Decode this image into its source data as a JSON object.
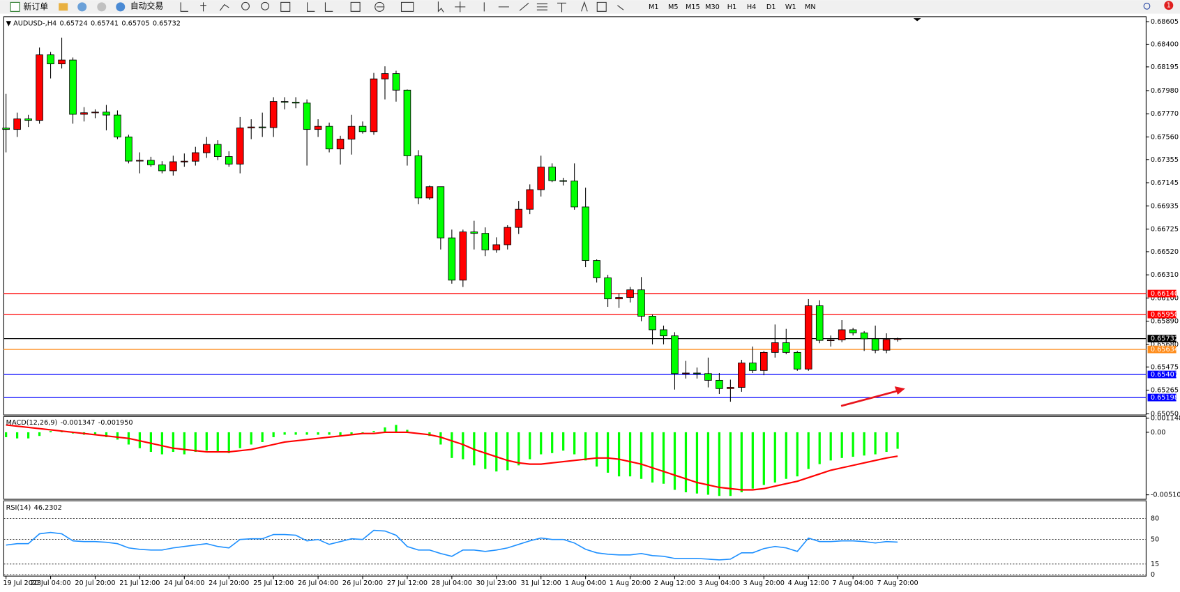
{
  "toolbar": {
    "new_order": "新订单",
    "auto_trading": "自动交易",
    "timeframes": [
      "M1",
      "M5",
      "M15",
      "M30",
      "H1",
      "H4",
      "D1",
      "W1",
      "MN"
    ],
    "badge": "1"
  },
  "chart": {
    "type": "candlestick",
    "symbol": "AUDUSD-,H4",
    "bull_color": "#ff0000",
    "bear_color": "#00ff00",
    "ylim": [
      0.6504,
      0.6865
    ],
    "yticks": [
      0.68605,
      {
        "value": 0.684,
        "label": "0.68400"
      },
      0.68195,
      {
        "value": 0.6798,
        "label": "0.67980"
      },
      {
        "value": 0.6777,
        "label": "0.67770"
      },
      {
        "value": 0.6756,
        "label": "0.67560"
      },
      0.67355,
      0.67145,
      0.66935,
      0.66725,
      {
        "value": 0.6652,
        "label": "0.66520"
      },
      {
        "value": 0.6631,
        "label": "0.66310"
      },
      {
        "value": 0.661,
        "label": "0.66100"
      },
      {
        "value": 0.6589,
        "label": "0.65890"
      },
      {
        "value": 0.6568,
        "label": "0.65680"
      },
      0.65475,
      0.65265,
      {
        "value": 0.6505,
        "label": "0.65050"
      }
    ],
    "candles": [
      [
        0.6764,
        0.6795,
        0.6742,
        0.67628
      ],
      [
        0.67628,
        0.6778,
        0.6756,
        0.67724
      ],
      [
        0.67724,
        0.6776,
        0.6765,
        0.6771
      ],
      [
        0.6771,
        0.6837,
        0.6768,
        0.68304
      ],
      [
        0.68304,
        0.6833,
        0.6809,
        0.68222
      ],
      [
        0.68222,
        0.6846,
        0.6818,
        0.68257
      ],
      [
        0.68257,
        0.6828,
        0.6768,
        0.67765
      ],
      [
        0.67765,
        0.6783,
        0.677,
        0.67779
      ],
      [
        0.67779,
        0.6781,
        0.6773,
        0.67785
      ],
      [
        0.67785,
        0.6785,
        0.6762,
        0.67758
      ],
      [
        0.67758,
        0.678,
        0.6754,
        0.6756
      ],
      [
        0.6756,
        0.6758,
        0.6732,
        0.67341
      ],
      [
        0.67341,
        0.6742,
        0.6723,
        0.67348
      ],
      [
        0.67348,
        0.6738,
        0.6729,
        0.67307
      ],
      [
        0.67307,
        0.6734,
        0.6723,
        0.67253
      ],
      [
        0.67253,
        0.6739,
        0.6721,
        0.67335
      ],
      [
        0.67335,
        0.6741,
        0.6729,
        0.6734
      ],
      [
        0.6734,
        0.6747,
        0.673,
        0.67417
      ],
      [
        0.67417,
        0.6756,
        0.6737,
        0.67492
      ],
      [
        0.67492,
        0.6753,
        0.6735,
        0.67382
      ],
      [
        0.67382,
        0.6743,
        0.6729,
        0.67314
      ],
      [
        0.67314,
        0.6774,
        0.6723,
        0.67642
      ],
      [
        0.67642,
        0.6772,
        0.6754,
        0.6765
      ],
      [
        0.6765,
        0.6778,
        0.6756,
        0.67645
      ],
      [
        0.67645,
        0.6792,
        0.6756,
        0.67881
      ],
      [
        0.67881,
        0.6792,
        0.6781,
        0.67875
      ],
      [
        0.67875,
        0.6792,
        0.6782,
        0.67867
      ],
      [
        0.67867,
        0.679,
        0.673,
        0.67628
      ],
      [
        0.67628,
        0.6772,
        0.6756,
        0.67656
      ],
      [
        0.67656,
        0.6769,
        0.6742,
        0.67451
      ],
      [
        0.67451,
        0.6757,
        0.6731,
        0.6754
      ],
      [
        0.6754,
        0.6776,
        0.674,
        0.67656
      ],
      [
        0.67656,
        0.677,
        0.6759,
        0.67608
      ],
      [
        0.67608,
        0.6814,
        0.6758,
        0.68086
      ],
      [
        0.68086,
        0.682,
        0.679,
        0.68134
      ],
      [
        0.68134,
        0.6816,
        0.6788,
        0.67984
      ],
      [
        0.67984,
        0.6799,
        0.673,
        0.67389
      ],
      [
        0.67389,
        0.6744,
        0.6695,
        0.67007
      ],
      [
        0.67007,
        0.6712,
        0.6699,
        0.67109
      ],
      [
        0.67109,
        0.6711,
        0.6654,
        0.66645
      ],
      [
        0.66645,
        0.6672,
        0.6623,
        0.66262
      ],
      [
        0.66262,
        0.6672,
        0.662,
        0.66699
      ],
      [
        0.66699,
        0.668,
        0.6654,
        0.66686
      ],
      [
        0.66686,
        0.6674,
        0.6648,
        0.66536
      ],
      [
        0.66536,
        0.6665,
        0.6651,
        0.66583
      ],
      [
        0.66583,
        0.6676,
        0.6654,
        0.6674
      ],
      [
        0.6674,
        0.6698,
        0.6668,
        0.66904
      ],
      [
        0.66904,
        0.6713,
        0.6686,
        0.67082
      ],
      [
        0.67082,
        0.6739,
        0.6702,
        0.67287
      ],
      [
        0.67287,
        0.6732,
        0.6715,
        0.67164
      ],
      [
        0.67164,
        0.6719,
        0.6712,
        0.6716
      ],
      [
        0.6716,
        0.6732,
        0.669,
        0.66925
      ],
      [
        0.66925,
        0.671,
        0.6638,
        0.6644
      ],
      [
        0.6644,
        0.6645,
        0.6624,
        0.66283
      ],
      [
        0.66283,
        0.6631,
        0.6602,
        0.66092
      ],
      [
        0.66092,
        0.6614,
        0.6601,
        0.66105
      ],
      [
        0.66105,
        0.662,
        0.6606,
        0.66174
      ],
      [
        0.66174,
        0.6629,
        0.6589,
        0.65935
      ],
      [
        0.65935,
        0.6595,
        0.6568,
        0.65812
      ],
      [
        0.65812,
        0.6585,
        0.6568,
        0.65757
      ],
      [
        0.65757,
        0.6579,
        0.6527,
        0.65415
      ],
      [
        0.65415,
        0.6553,
        0.6537,
        0.6542
      ],
      [
        0.6542,
        0.6547,
        0.6537,
        0.65415
      ],
      [
        0.65415,
        0.6556,
        0.6529,
        0.65354
      ],
      [
        0.65354,
        0.6542,
        0.6523,
        0.65279
      ],
      [
        0.65279,
        0.6536,
        0.6516,
        0.6529
      ],
      [
        0.6529,
        0.6554,
        0.6525,
        0.65511
      ],
      [
        0.65511,
        0.6566,
        0.6542,
        0.65443
      ],
      [
        0.65443,
        0.6562,
        0.654,
        0.65607
      ],
      [
        0.65607,
        0.6586,
        0.6556,
        0.65695
      ],
      [
        0.65695,
        0.6582,
        0.6559,
        0.65607
      ],
      [
        0.65607,
        0.6562,
        0.6544,
        0.65456
      ],
      [
        0.65456,
        0.6609,
        0.6544,
        0.6603
      ],
      [
        0.6603,
        0.6608,
        0.6569,
        0.65716
      ],
      [
        0.65716,
        0.6576,
        0.6566,
        0.6572
      ],
      [
        0.6572,
        0.659,
        0.657,
        0.65812
      ],
      [
        0.65812,
        0.6583,
        0.6576,
        0.65784
      ],
      [
        0.65784,
        0.658,
        0.6562,
        0.6573
      ],
      [
        0.6573,
        0.6585,
        0.656,
        0.65627
      ],
      [
        0.65627,
        0.6578,
        0.656,
        0.65724
      ],
      [
        0.65724,
        0.65741,
        0.65705,
        0.65732
      ]
    ],
    "x_labels": [
      "19 Jul 2023",
      "20 Jul 04:00",
      "20 Jul 20:00",
      "21 Jul 12:00",
      "24 Jul 04:00",
      "24 Jul 20:00",
      "25 Jul 12:00",
      "26 Jul 04:00",
      "26 Jul 20:00",
      "27 Jul 12:00",
      "28 Jul 04:00",
      "30 Jul 23:00",
      "31 Jul 12:00",
      "1 Aug 04:00",
      "1 Aug 20:00",
      "2 Aug 12:00",
      "3 Aug 04:00",
      "3 Aug 20:00",
      "4 Aug 12:00",
      "7 Aug 04:00",
      "7 Aug 20:00"
    ],
    "levels": [
      {
        "value": 0.6614,
        "label": "0.66140",
        "color": "#ff0000"
      },
      {
        "value": 0.6595,
        "label": "0.65950",
        "color": "#ff0000"
      },
      {
        "value": 0.65732,
        "label": "0.65732",
        "color": "#000000"
      },
      {
        "value": 0.65634,
        "label": "0.65634",
        "color": "#ff8c1a"
      },
      {
        "value": 0.65407,
        "label": "0.65407",
        "color": "#0000ff"
      },
      {
        "value": 0.65198,
        "label": "0.65198",
        "color": "#0000ff"
      }
    ]
  },
  "macd": {
    "name": "MACD(12,26,9)",
    "main_label": "-0.001347",
    "signal_label": "-0.001950",
    "histogram_color": "#00ff00",
    "signal_color": "#ff0000",
    "ylim": [
      -0.00547,
      0.00129
    ],
    "yticks": [
      0.001148,
      {
        "value": 0,
        "label": "0.00"
      },
      -0.005104
    ],
    "histogram": [
      -0.0004,
      -0.0005,
      -0.0005,
      -0.0003,
      0.0001,
      0.0001,
      -0.0001,
      -0.0002,
      -0.0002,
      -0.0004,
      -0.0006,
      -0.001,
      -0.0013,
      -0.0016,
      -0.0018,
      -0.0016,
      -0.0018,
      -0.0016,
      -0.0015,
      -0.0016,
      -0.0017,
      -0.0013,
      -0.001,
      -0.0008,
      -0.0004,
      -0.0002,
      -0.0002,
      -0.0002,
      -0.0002,
      -0.0002,
      -0.0003,
      -0.0002,
      -0.0001,
      0.0001,
      0.0004,
      0.0006,
      0.0002,
      0,
      -0.0003,
      -0.001,
      -0.0021,
      -0.0022,
      -0.0027,
      -0.003,
      -0.0032,
      -0.0031,
      -0.0027,
      -0.0022,
      -0.0018,
      -0.0017,
      -0.0015,
      -0.0018,
      -0.0023,
      -0.0028,
      -0.0033,
      -0.0036,
      -0.0036,
      -0.0038,
      -0.0041,
      -0.0042,
      -0.0047,
      -0.0049,
      -0.005,
      -0.0051,
      -0.0052,
      -0.0052,
      -0.0049,
      -0.0046,
      -0.0043,
      -0.0041,
      -0.0038,
      -0.0036,
      -0.003,
      -0.0026,
      -0.0023,
      -0.0021,
      -0.002,
      -0.0019,
      -0.0018,
      -0.0016,
      -0.001347
    ],
    "signal": [
      0.0006,
      0.0005,
      0.0004,
      0.0003,
      0.0002,
      0.0001,
      0,
      -0.0001,
      -0.0002,
      -0.0003,
      -0.0004,
      -0.0005,
      -0.0007,
      -0.0009,
      -0.0011,
      -0.0013,
      -0.0014,
      -0.0015,
      -0.0016,
      -0.0016,
      -0.0016,
      -0.0015,
      -0.0014,
      -0.0012,
      -0.001,
      -0.0008,
      -0.0007,
      -0.0006,
      -0.0005,
      -0.0004,
      -0.0003,
      -0.0002,
      -0.0001,
      -0.0001,
      0,
      0,
      0,
      -0.0001,
      -0.0002,
      -0.0004,
      -0.0007,
      -0.001,
      -0.0014,
      -0.0017,
      -0.002,
      -0.0023,
      -0.0025,
      -0.0026,
      -0.0026,
      -0.0025,
      -0.0024,
      -0.0023,
      -0.0022,
      -0.0021,
      -0.0021,
      -0.0022,
      -0.0024,
      -0.0026,
      -0.0029,
      -0.0032,
      -0.0035,
      -0.0038,
      -0.0041,
      -0.0043,
      -0.0045,
      -0.0046,
      -0.0047,
      -0.0047,
      -0.0046,
      -0.0044,
      -0.0042,
      -0.004,
      -0.0037,
      -0.0034,
      -0.0031,
      -0.0029,
      -0.0027,
      -0.0025,
      -0.0023,
      -0.0021,
      -0.00195
    ]
  },
  "rsi": {
    "name": "RSI(14)",
    "color": "#1e90ff",
    "ylim": [
      -2.1,
      105
    ],
    "yticks": [
      80,
      50,
      15,
      0
    ],
    "values": [
      42,
      44,
      44,
      58,
      60,
      58,
      48,
      47,
      47,
      46,
      44,
      38,
      36,
      35,
      35,
      38,
      40,
      42,
      44,
      40,
      38,
      50,
      51,
      51,
      57,
      57,
      56,
      48,
      50,
      43,
      47,
      51,
      50,
      63,
      62,
      56,
      40,
      35,
      35,
      30,
      26,
      35,
      35,
      33,
      35,
      38,
      43,
      48,
      52,
      50,
      50,
      45,
      36,
      31,
      29,
      28,
      28,
      30,
      27,
      26,
      23,
      23,
      23,
      22,
      21,
      22,
      31,
      31,
      37,
      40,
      38,
      33,
      52,
      47,
      47,
      48,
      48,
      47,
      45,
      47,
      46.2302
    ]
  }
}
